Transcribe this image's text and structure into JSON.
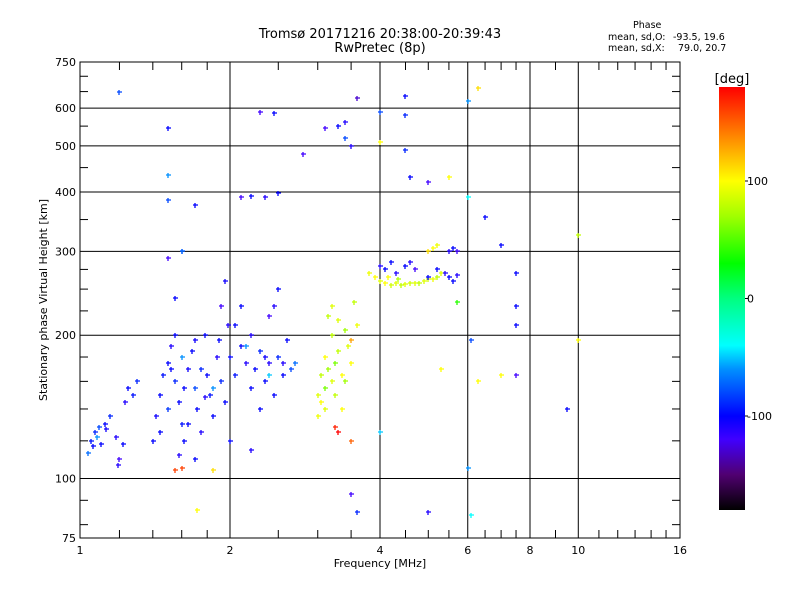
{
  "chart_data": {
    "type": "scatter",
    "title": "Tromsø 20171216 20:38:00-20:39:43",
    "subtitle": "RwPretec (8p)",
    "xlabel": "Frequency [MHz]",
    "ylabel": "Stationary phase Virtual Height [km]",
    "xscale": "log",
    "yscale": "log",
    "xlim": [
      1,
      16
    ],
    "ylim": [
      75,
      750
    ],
    "xticks": [
      1,
      2,
      4,
      6,
      8,
      10,
      16
    ],
    "yticks": [
      75,
      100,
      200,
      300,
      400,
      500,
      600,
      750
    ],
    "grid": true,
    "colorbar": {
      "label": "[deg]",
      "range": [
        -180,
        180
      ],
      "ticks": [
        100,
        0,
        -100
      ],
      "stops": [
        [
          -180,
          "#000000"
        ],
        [
          -150,
          "#500070"
        ],
        [
          -120,
          "#4000ff"
        ],
        [
          -100,
          "#0000ff"
        ],
        [
          -60,
          "#0090ff"
        ],
        [
          -40,
          "#00ffff"
        ],
        [
          0,
          "#00ff80"
        ],
        [
          30,
          "#00ff00"
        ],
        [
          70,
          "#a0ff00"
        ],
        [
          100,
          "#ffff00"
        ],
        [
          130,
          "#ffa000"
        ],
        [
          150,
          "#ff6000"
        ],
        [
          180,
          "#ff0000"
        ]
      ]
    },
    "stats": {
      "heading": "Phase",
      "o_label": "mean, sd,O:",
      "o_values": "-93.5, 19.6",
      "x_label": "mean, sd,X:",
      "x_values": "79.0, 20.7"
    },
    "point_fields": [
      "frequency_MHz",
      "height_km",
      "phase_deg"
    ],
    "points": [
      [
        1.05,
        120,
        -95
      ],
      [
        1.07,
        125,
        -90
      ],
      [
        1.09,
        128,
        -80
      ],
      [
        1.1,
        118,
        -100
      ],
      [
        1.12,
        130,
        -100
      ],
      [
        1.04,
        113,
        -70
      ],
      [
        1.08,
        122,
        -60
      ],
      [
        1.13,
        127,
        -105
      ],
      [
        1.06,
        117,
        -100
      ],
      [
        1.15,
        135,
        -90
      ],
      [
        1.18,
        122,
        -110
      ],
      [
        1.2,
        110,
        -120
      ],
      [
        1.22,
        118,
        -100
      ],
      [
        1.25,
        155,
        -100
      ],
      [
        1.28,
        150,
        -95
      ],
      [
        1.3,
        160,
        -90
      ],
      [
        1.23,
        145,
        -110
      ],
      [
        1.19,
        107,
        -110
      ],
      [
        1.4,
        120,
        -100
      ],
      [
        1.42,
        135,
        -105
      ],
      [
        1.45,
        150,
        -100
      ],
      [
        1.47,
        165,
        -95
      ],
      [
        1.5,
        175,
        -100
      ],
      [
        1.52,
        190,
        -110
      ],
      [
        1.55,
        160,
        -90
      ],
      [
        1.58,
        145,
        -100
      ],
      [
        1.6,
        130,
        -95
      ],
      [
        1.62,
        120,
        -100
      ],
      [
        1.65,
        170,
        -105
      ],
      [
        1.68,
        185,
        -100
      ],
      [
        1.7,
        155,
        -80
      ],
      [
        1.72,
        140,
        -100
      ],
      [
        1.75,
        125,
        -110
      ],
      [
        1.78,
        200,
        -100
      ],
      [
        1.8,
        165,
        -100
      ],
      [
        1.82,
        150,
        -95
      ],
      [
        1.85,
        135,
        -100
      ],
      [
        1.88,
        180,
        -110
      ],
      [
        1.9,
        195,
        -100
      ],
      [
        1.92,
        160,
        -90
      ],
      [
        1.95,
        145,
        -100
      ],
      [
        1.98,
        210,
        -110
      ],
      [
        1.5,
        140,
        -85
      ],
      [
        1.55,
        200,
        -100
      ],
      [
        1.6,
        180,
        -60
      ],
      [
        1.45,
        125,
        -100
      ],
      [
        1.65,
        130,
        -100
      ],
      [
        1.75,
        170,
        -90
      ],
      [
        1.85,
        155,
        -60
      ],
      [
        1.7,
        195,
        -105
      ],
      [
        1.62,
        155,
        -100
      ],
      [
        1.52,
        170,
        -100
      ],
      [
        1.78,
        148,
        -110
      ],
      [
        1.92,
        230,
        -120
      ],
      [
        1.95,
        260,
        -105
      ],
      [
        1.55,
        240,
        -100
      ],
      [
        1.6,
        300,
        -100
      ],
      [
        1.5,
        290,
        -120
      ],
      [
        1.58,
        112,
        -110
      ],
      [
        1.6,
        105,
        160
      ],
      [
        1.7,
        110,
        -100
      ],
      [
        1.72,
        86,
        100
      ],
      [
        2.0,
        180,
        -100
      ],
      [
        2.05,
        165,
        -95
      ],
      [
        2.1,
        190,
        -100
      ],
      [
        2.15,
        175,
        -110
      ],
      [
        2.2,
        155,
        -100
      ],
      [
        2.25,
        170,
        -100
      ],
      [
        2.3,
        185,
        -90
      ],
      [
        2.35,
        160,
        -100
      ],
      [
        2.4,
        175,
        -110
      ],
      [
        2.45,
        150,
        -100
      ],
      [
        2.5,
        180,
        -90
      ],
      [
        2.55,
        165,
        -100
      ],
      [
        2.6,
        195,
        -100
      ],
      [
        2.65,
        170,
        -80
      ],
      [
        2.7,
        175,
        -70
      ],
      [
        2.2,
        200,
        -110
      ],
      [
        2.3,
        140,
        -100
      ],
      [
        2.4,
        220,
        -120
      ],
      [
        2.1,
        230,
        -100
      ],
      [
        2.5,
        250,
        -100
      ],
      [
        2.0,
        120,
        -100
      ],
      [
        2.2,
        115,
        -110
      ],
      [
        2.15,
        190,
        -60
      ],
      [
        2.4,
        165,
        -50
      ],
      [
        2.35,
        180,
        -105
      ],
      [
        2.55,
        175,
        -110
      ],
      [
        2.05,
        210,
        -100
      ],
      [
        2.45,
        230,
        -110
      ],
      [
        3.0,
        150,
        90
      ],
      [
        3.05,
        165,
        80
      ],
      [
        3.1,
        180,
        100
      ],
      [
        3.15,
        170,
        70
      ],
      [
        3.2,
        160,
        90
      ],
      [
        3.25,
        175,
        60
      ],
      [
        3.3,
        185,
        80
      ],
      [
        3.35,
        165,
        100
      ],
      [
        3.1,
        140,
        90
      ],
      [
        3.05,
        145,
        100
      ],
      [
        3.2,
        200,
        80
      ],
      [
        3.3,
        215,
        90
      ],
      [
        3.4,
        205,
        70
      ],
      [
        3.15,
        220,
        80
      ],
      [
        3.45,
        190,
        90
      ],
      [
        3.5,
        175,
        100
      ],
      [
        3.1,
        155,
        60
      ],
      [
        3.25,
        150,
        80
      ],
      [
        3.35,
        140,
        100
      ],
      [
        3.0,
        135,
        95
      ],
      [
        3.2,
        230,
        90
      ],
      [
        3.6,
        210,
        95
      ],
      [
        3.55,
        235,
        80
      ],
      [
        3.4,
        160,
        70
      ],
      [
        3.5,
        195,
        130
      ],
      [
        3.3,
        125,
        180
      ],
      [
        4.0,
        260,
        90
      ],
      [
        4.1,
        258,
        100
      ],
      [
        4.2,
        255,
        85
      ],
      [
        4.3,
        257,
        90
      ],
      [
        4.4,
        255,
        80
      ],
      [
        4.5,
        256,
        90
      ],
      [
        4.6,
        258,
        85
      ],
      [
        4.7,
        257,
        90
      ],
      [
        4.8,
        258,
        80
      ],
      [
        4.9,
        260,
        90
      ],
      [
        5.0,
        262,
        85
      ],
      [
        5.1,
        263,
        95
      ],
      [
        5.2,
        265,
        80
      ],
      [
        5.3,
        270,
        90
      ],
      [
        3.9,
        265,
        100
      ],
      [
        3.8,
        270,
        95
      ],
      [
        4.15,
        265,
        100
      ],
      [
        4.35,
        262,
        75
      ],
      [
        5.0,
        300,
        110
      ],
      [
        5.1,
        305,
        100
      ],
      [
        5.2,
        310,
        95
      ],
      [
        4.0,
        280,
        -110
      ],
      [
        4.1,
        275,
        -100
      ],
      [
        4.2,
        285,
        -100
      ],
      [
        4.3,
        270,
        -110
      ],
      [
        4.5,
        280,
        -100
      ],
      [
        4.7,
        275,
        -120
      ],
      [
        5.0,
        265,
        -100
      ],
      [
        5.2,
        275,
        -100
      ],
      [
        5.4,
        270,
        -110
      ],
      [
        5.5,
        265,
        -100
      ],
      [
        5.6,
        260,
        -100
      ],
      [
        5.7,
        268,
        -110
      ],
      [
        5.5,
        300,
        -110
      ],
      [
        5.6,
        305,
        -100
      ],
      [
        5.7,
        300,
        -120
      ],
      [
        4.6,
        285,
        -110
      ],
      [
        1.2,
        650,
        -80
      ],
      [
        1.5,
        545,
        -100
      ],
      [
        1.5,
        435,
        -60
      ],
      [
        1.5,
        385,
        -80
      ],
      [
        1.6,
        300,
        -70
      ],
      [
        1.7,
        375,
        -100
      ],
      [
        2.1,
        390,
        -120
      ],
      [
        2.2,
        393,
        -100
      ],
      [
        2.35,
        390,
        -110
      ],
      [
        2.5,
        398,
        -100
      ],
      [
        2.3,
        590,
        -120
      ],
      [
        2.45,
        585,
        -100
      ],
      [
        2.8,
        480,
        -120
      ],
      [
        3.1,
        545,
        -120
      ],
      [
        3.3,
        550,
        -100
      ],
      [
        3.4,
        560,
        -110
      ],
      [
        3.6,
        630,
        -130
      ],
      [
        3.4,
        520,
        -80
      ],
      [
        3.5,
        500,
        -110
      ],
      [
        4.0,
        590,
        -80
      ],
      [
        4.0,
        510,
        100
      ],
      [
        4.5,
        635,
        -100
      ],
      [
        4.5,
        580,
        -90
      ],
      [
        4.5,
        490,
        -90
      ],
      [
        4.6,
        430,
        -100
      ],
      [
        5.0,
        420,
        -120
      ],
      [
        5.5,
        430,
        100
      ],
      [
        6.0,
        620,
        -60
      ],
      [
        6.3,
        660,
        110
      ],
      [
        6.0,
        390,
        -40
      ],
      [
        6.5,
        355,
        -100
      ],
      [
        7.0,
        310,
        -100
      ],
      [
        7.5,
        270,
        -100
      ],
      [
        7.5,
        230,
        -100
      ],
      [
        7.5,
        210,
        -100
      ],
      [
        6.1,
        195,
        -80
      ],
      [
        7.5,
        165,
        -120
      ],
      [
        7.0,
        165,
        100
      ],
      [
        9.5,
        140,
        -100
      ],
      [
        10,
        195,
        100
      ],
      [
        10,
        325,
        80
      ],
      [
        6.3,
        160,
        100
      ],
      [
        5.7,
        235,
        40
      ],
      [
        5.3,
        170,
        100
      ],
      [
        6.0,
        105,
        -60
      ],
      [
        6.1,
        84,
        -40
      ],
      [
        5.0,
        85,
        -110
      ],
      [
        3.6,
        85,
        -90
      ],
      [
        3.5,
        93,
        -120
      ],
      [
        4.0,
        125,
        -50
      ],
      [
        3.5,
        120,
        150
      ],
      [
        1.55,
        104,
        160
      ],
      [
        1.85,
        104,
        110
      ],
      [
        3.25,
        128,
        170
      ]
    ]
  }
}
